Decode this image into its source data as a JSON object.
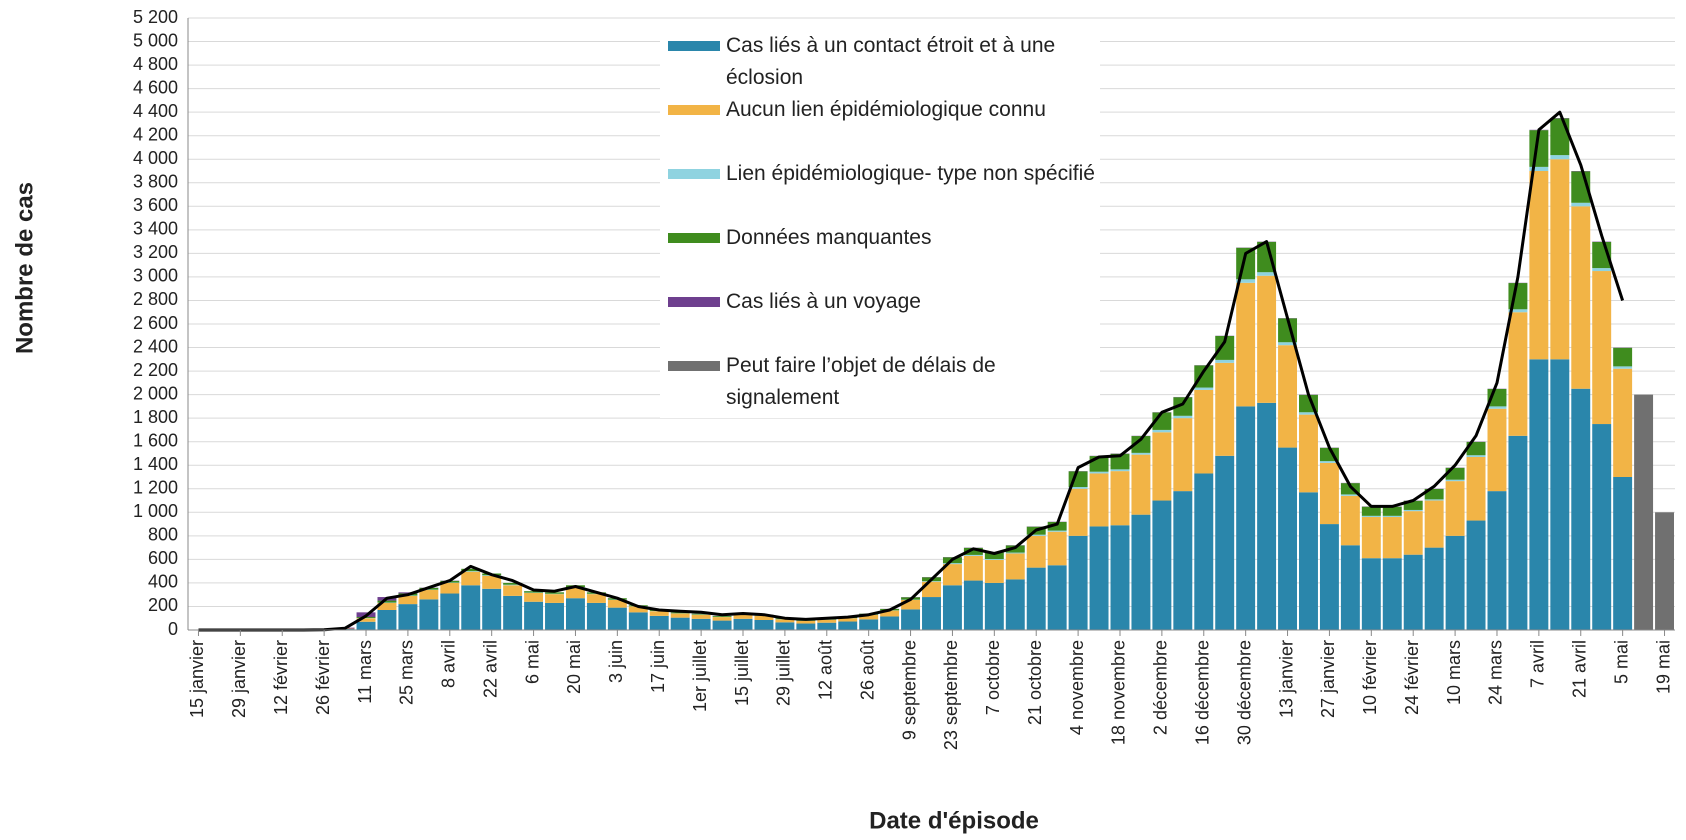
{
  "chart_data": {
    "type": "bar",
    "x_label": "Date d'épisode",
    "y_label": "Nombre de cas",
    "categories": [
      "15 janvier",
      null,
      "29 janvier",
      null,
      "12 février",
      null,
      "26 février",
      null,
      "11 mars",
      null,
      "25 mars",
      null,
      "8 avril",
      null,
      "22 avril",
      null,
      "6 mai",
      null,
      "20 mai",
      null,
      "3 juin",
      null,
      "17 juin",
      null,
      "1er juillet",
      null,
      "15 juillet",
      null,
      "29 juillet",
      null,
      "12 août",
      null,
      "26 août",
      null,
      "9 septembre",
      null,
      "23 septembre",
      null,
      "7 octobre",
      null,
      "21 octobre",
      null,
      "4 novembre",
      null,
      "18 novembre",
      null,
      "2 décembre",
      null,
      "16 décembre",
      null,
      "30 décembre",
      null,
      "13 janvier",
      null,
      "27 janvier",
      null,
      "10 février",
      null,
      "24 février",
      null,
      "10 mars",
      null,
      "24 mars",
      null,
      "7 avril",
      null,
      "21 avril",
      null,
      "5 mai",
      null,
      "19 mai"
    ],
    "series": [
      {
        "name": "Cas liés à un contact étroit et à une éclosion",
        "color": "#2a86ab",
        "values": [
          0,
          0,
          0,
          0,
          0,
          0,
          1,
          8,
          70,
          170,
          220,
          260,
          310,
          380,
          350,
          290,
          240,
          230,
          270,
          230,
          190,
          150,
          120,
          105,
          95,
          80,
          95,
          85,
          65,
          55,
          62,
          72,
          90,
          115,
          175,
          280,
          380,
          420,
          400,
          430,
          530,
          550,
          800,
          880,
          890,
          980,
          1100,
          1180,
          1330,
          1480,
          1900,
          1930,
          1550,
          1170,
          900,
          720,
          610,
          610,
          640,
          700,
          800,
          930,
          1180,
          1650,
          2300,
          2300,
          2050,
          1750,
          1300,
          0,
          0
        ]
      },
      {
        "name": "Aucun lien épidémiologique connu",
        "color": "#f2b446",
        "values": [
          0,
          0,
          0,
          0,
          0,
          0,
          0,
          4,
          30,
          60,
          70,
          80,
          90,
          115,
          110,
          90,
          75,
          75,
          90,
          75,
          65,
          50,
          40,
          35,
          35,
          30,
          35,
          35,
          25,
          22,
          25,
          28,
          38,
          50,
          80,
          130,
          180,
          210,
          195,
          220,
          270,
          285,
          400,
          450,
          460,
          510,
          580,
          620,
          710,
          790,
          1050,
          1080,
          870,
          660,
          520,
          420,
          350,
          350,
          370,
          400,
          465,
          540,
          700,
          1050,
          1600,
          1700,
          1550,
          1300,
          920,
          0,
          0
        ]
      },
      {
        "name": "Lien épidémiologique- type non spécifié",
        "color": "#8fd3e0",
        "values": [
          0,
          0,
          0,
          0,
          0,
          0,
          0,
          0,
          2,
          3,
          3,
          3,
          3,
          5,
          5,
          5,
          3,
          3,
          5,
          3,
          3,
          2,
          2,
          2,
          2,
          2,
          2,
          2,
          2,
          1,
          1,
          1,
          2,
          2,
          3,
          5,
          8,
          8,
          8,
          8,
          10,
          10,
          15,
          15,
          15,
          15,
          20,
          20,
          20,
          25,
          30,
          30,
          25,
          20,
          15,
          12,
          10,
          10,
          10,
          10,
          12,
          15,
          20,
          25,
          35,
          35,
          30,
          25,
          20,
          0,
          0
        ]
      },
      {
        "name": "Données manquantes",
        "color": "#3f8c1e",
        "values": [
          0,
          0,
          0,
          0,
          0,
          0,
          0,
          0,
          8,
          17,
          17,
          15,
          15,
          20,
          15,
          15,
          12,
          12,
          15,
          12,
          12,
          8,
          8,
          7,
          7,
          7,
          7,
          7,
          7,
          6,
          6,
          8,
          9,
          12,
          20,
          33,
          50,
          60,
          55,
          60,
          68,
          73,
          133,
          133,
          133,
          143,
          148,
          158,
          188,
          203,
          268,
          258,
          203,
          148,
          113,
          96,
          78,
          78,
          78,
          88,
          101,
          113,
          148,
          223,
          312,
          312,
          267,
          222,
          158,
          0,
          0
        ]
      },
      {
        "name": "Cas liés à un voyage",
        "color": "#6e3f8e",
        "values": [
          0,
          0,
          0,
          0,
          0,
          0,
          2,
          8,
          40,
          30,
          10,
          2,
          2,
          0,
          0,
          0,
          0,
          0,
          0,
          0,
          0,
          0,
          0,
          1,
          1,
          1,
          1,
          1,
          1,
          1,
          1,
          1,
          1,
          1,
          2,
          2,
          2,
          2,
          2,
          2,
          2,
          2,
          2,
          2,
          2,
          2,
          2,
          2,
          2,
          2,
          2,
          2,
          2,
          2,
          2,
          2,
          2,
          2,
          2,
          2,
          2,
          2,
          2,
          2,
          3,
          3,
          3,
          3,
          2,
          0,
          0
        ]
      },
      {
        "name": "Peut faire l’objet de délais de signalement",
        "color": "#707070",
        "values": [
          0,
          0,
          0,
          0,
          0,
          0,
          0,
          0,
          0,
          0,
          0,
          0,
          0,
          0,
          0,
          0,
          0,
          0,
          0,
          0,
          0,
          0,
          0,
          0,
          0,
          0,
          0,
          0,
          0,
          0,
          0,
          0,
          0,
          0,
          0,
          0,
          0,
          0,
          0,
          0,
          0,
          0,
          0,
          0,
          0,
          0,
          0,
          0,
          0,
          0,
          0,
          0,
          0,
          0,
          0,
          0,
          0,
          0,
          0,
          0,
          0,
          0,
          0,
          0,
          0,
          0,
          0,
          0,
          0,
          2000,
          1000
        ]
      },
      {
        "type": "line",
        "color": "#000000",
        "values": [
          0,
          0,
          0,
          0,
          0,
          0,
          2,
          15,
          120,
          270,
          300,
          360,
          420,
          540,
          470,
          420,
          340,
          330,
          370,
          320,
          270,
          200,
          170,
          160,
          150,
          130,
          140,
          130,
          100,
          90,
          100,
          110,
          130,
          170,
          260,
          430,
          600,
          690,
          650,
          700,
          850,
          900,
          1380,
          1470,
          1480,
          1620,
          1850,
          1920,
          2200,
          2450,
          3200,
          3300,
          2650,
          2000,
          1550,
          1220,
          1050,
          1050,
          1100,
          1220,
          1400,
          1650,
          2100,
          3000,
          4250,
          4400,
          3950,
          3350,
          2800,
          null,
          null
        ]
      }
    ],
    "ylim": [
      0,
      5200
    ],
    "yticks": [
      0,
      200,
      400,
      600,
      800,
      {
        "value": 1000,
        "label": "1 000"
      },
      {
        "value": 1200,
        "label": "1 200"
      },
      {
        "value": 1400,
        "label": "1 400"
      },
      {
        "value": 1600,
        "label": "1 600"
      },
      {
        "value": 1800,
        "label": "1 800"
      },
      {
        "value": 2000,
        "label": "2 000"
      },
      {
        "value": 2200,
        "label": "2 200"
      },
      {
        "value": 2400,
        "label": "2 400"
      },
      {
        "value": 2600,
        "label": "2 600"
      },
      {
        "value": 2800,
        "label": "2 800"
      },
      {
        "value": 3000,
        "label": "3 000"
      },
      {
        "value": 3200,
        "label": "3 200"
      },
      {
        "value": 3400,
        "label": "3 400"
      },
      {
        "value": 3600,
        "label": "3 600"
      },
      {
        "value": 3800,
        "label": "3 800"
      },
      {
        "value": 4000,
        "label": "4 000"
      },
      {
        "value": 4200,
        "label": "4 200"
      },
      {
        "value": 4400,
        "label": "4 400"
      },
      {
        "value": 4600,
        "label": "4 600"
      },
      {
        "value": 4800,
        "label": "4 800"
      },
      {
        "value": 5000,
        "label": "5 000"
      },
      {
        "value": 5200,
        "label": "5 200"
      }
    ],
    "grid": true
  }
}
